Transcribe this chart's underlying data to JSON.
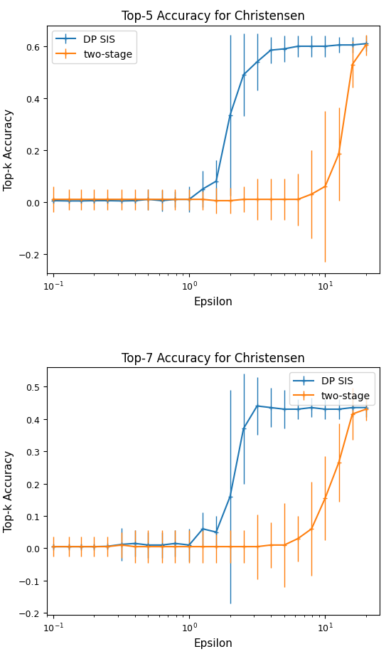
{
  "title1": "Top-5 Accuracy for Christensen",
  "title2": "Top-7 Accuracy for Christensen",
  "xlabel": "Epsilon",
  "ylabel": "Top-k Accuracy",
  "color_dpsis": "#1f77b4",
  "color_twostage": "#ff7f0e",
  "label_dpsis": "DP SIS",
  "label_twostage": "two-stage",
  "plot1_dpsis_x": [
    0.1,
    0.13,
    0.16,
    0.2,
    0.25,
    0.32,
    0.4,
    0.5,
    0.63,
    0.79,
    1.0,
    1.26,
    1.58,
    2.0,
    2.51,
    3.16,
    3.98,
    5.01,
    6.31,
    7.94,
    10.0,
    12.59,
    15.85,
    19.95
  ],
  "plot1_dpsis_y": [
    0.005,
    0.004,
    0.004,
    0.005,
    0.005,
    0.004,
    0.005,
    0.01,
    0.005,
    0.01,
    0.01,
    0.05,
    0.08,
    0.335,
    0.49,
    0.54,
    0.585,
    0.59,
    0.6,
    0.6,
    0.6,
    0.605,
    0.605,
    0.61
  ],
  "plot1_dpsis_yerr": [
    0.01,
    0.01,
    0.01,
    0.01,
    0.01,
    0.01,
    0.01,
    0.04,
    0.04,
    0.03,
    0.05,
    0.07,
    0.08,
    0.31,
    0.16,
    0.11,
    0.05,
    0.05,
    0.04,
    0.04,
    0.04,
    0.03,
    0.03,
    0.03
  ],
  "plot1_two_x": [
    0.1,
    0.13,
    0.16,
    0.2,
    0.25,
    0.32,
    0.4,
    0.5,
    0.63,
    0.79,
    1.0,
    1.26,
    1.58,
    2.0,
    2.51,
    3.16,
    3.98,
    5.01,
    6.31,
    7.94,
    10.0,
    12.59,
    15.85,
    19.95
  ],
  "plot1_two_y": [
    0.01,
    0.01,
    0.01,
    0.01,
    0.01,
    0.01,
    0.01,
    0.01,
    0.01,
    0.01,
    0.01,
    0.01,
    0.005,
    0.005,
    0.01,
    0.01,
    0.01,
    0.01,
    0.01,
    0.03,
    0.06,
    0.185,
    0.53,
    0.605
  ],
  "plot1_two_yerr": [
    0.05,
    0.04,
    0.04,
    0.04,
    0.04,
    0.04,
    0.04,
    0.04,
    0.04,
    0.04,
    0.04,
    0.04,
    0.05,
    0.05,
    0.05,
    0.08,
    0.08,
    0.08,
    0.1,
    0.17,
    0.29,
    0.18,
    0.09,
    0.04
  ],
  "plot2_dpsis_x": [
    0.1,
    0.13,
    0.16,
    0.2,
    0.25,
    0.32,
    0.4,
    0.5,
    0.63,
    0.79,
    1.0,
    1.26,
    1.58,
    2.0,
    2.51,
    3.16,
    3.98,
    5.01,
    6.31,
    7.94,
    10.0,
    12.59,
    15.85,
    19.95
  ],
  "plot2_dpsis_y": [
    0.005,
    0.005,
    0.005,
    0.005,
    0.006,
    0.012,
    0.015,
    0.01,
    0.01,
    0.015,
    0.01,
    0.06,
    0.05,
    0.16,
    0.37,
    0.44,
    0.435,
    0.43,
    0.43,
    0.435,
    0.43,
    0.43,
    0.435,
    0.435
  ],
  "plot2_dpsis_yerr": [
    0.01,
    0.01,
    0.01,
    0.01,
    0.01,
    0.05,
    0.04,
    0.04,
    0.04,
    0.04,
    0.05,
    0.05,
    0.05,
    0.33,
    0.17,
    0.09,
    0.06,
    0.06,
    0.03,
    0.03,
    0.03,
    0.03,
    0.03,
    0.03
  ],
  "plot2_two_x": [
    0.1,
    0.13,
    0.16,
    0.2,
    0.25,
    0.32,
    0.4,
    0.5,
    0.63,
    0.79,
    1.0,
    1.26,
    1.58,
    2.0,
    2.51,
    3.16,
    3.98,
    5.01,
    6.31,
    7.94,
    10.0,
    12.59,
    15.85,
    19.95
  ],
  "plot2_two_y": [
    0.005,
    0.005,
    0.005,
    0.005,
    0.005,
    0.01,
    0.005,
    0.005,
    0.005,
    0.005,
    0.005,
    0.005,
    0.005,
    0.005,
    0.005,
    0.005,
    0.01,
    0.01,
    0.03,
    0.06,
    0.155,
    0.265,
    0.415,
    0.43
  ],
  "plot2_two_yerr": [
    0.03,
    0.03,
    0.03,
    0.03,
    0.03,
    0.04,
    0.05,
    0.05,
    0.05,
    0.05,
    0.05,
    0.05,
    0.05,
    0.05,
    0.05,
    0.1,
    0.07,
    0.13,
    0.07,
    0.145,
    0.13,
    0.12,
    0.08,
    0.035
  ],
  "ylim1": [
    null,
    0.68
  ],
  "ylim2": [
    null,
    0.56
  ],
  "xlim": [
    0.09,
    25
  ],
  "figsize": [
    5.5,
    9.2
  ],
  "dpi": 100,
  "hspace": 0.38
}
